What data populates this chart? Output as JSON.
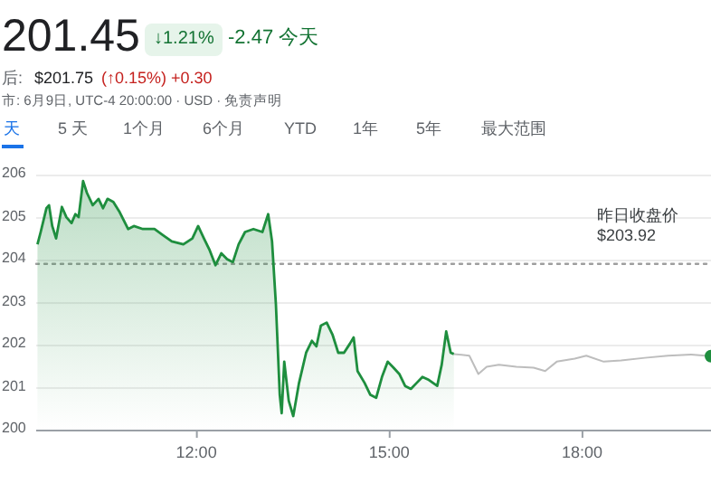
{
  "chart_data": {
    "type": "line",
    "title": "201.45",
    "annotations": [
      "↓1.21%",
      "-2.47 今天",
      "后:",
      "$201.75",
      "(↑0.15%) +0.30",
      "市: 6月9日, UTC-4 20:00:00 · USD · 免责声明",
      "天",
      "5 天",
      "1个月",
      "6个月",
      "YTD",
      "1年",
      "5年",
      "最大范围"
    ],
    "xlim": [
      9.5,
      20
    ],
    "xticks": [
      {
        "value": 12,
        "label": "12:00"
      },
      {
        "value": 15,
        "label": "15:00"
      },
      {
        "value": 18,
        "label": "18:00"
      }
    ],
    "ylim": [
      200,
      206
    ],
    "yticks": [
      200,
      201,
      202,
      203,
      204,
      205,
      206
    ],
    "grid": "y",
    "ref_lines": [
      {
        "axis": "y",
        "value": 203.92,
        "label": "昨日收盘价 $203.92",
        "color": "#9e9e9e",
        "line_style": "dotted"
      }
    ],
    "series": [
      {
        "type": "area",
        "color": "#1e8e3e",
        "x": [
          9.52,
          9.57,
          9.66,
          9.7,
          9.75,
          9.81,
          9.9,
          9.97,
          10.05,
          10.11,
          10.16,
          10.23,
          10.29,
          10.38,
          10.47,
          10.54,
          10.61,
          10.7,
          10.79,
          10.93,
          11.02,
          11.16,
          11.34,
          11.47,
          11.61,
          11.79,
          11.93,
          12.02,
          12.11,
          12.2,
          12.29,
          12.38,
          12.47,
          12.56,
          12.65,
          12.75,
          12.88,
          13.02,
          13.11,
          13.17,
          13.23,
          13.29,
          13.32,
          13.36,
          13.43,
          13.5,
          13.59,
          13.7,
          13.79,
          13.86,
          13.93,
          14.02,
          14.11,
          14.2,
          14.29,
          14.38,
          14.44,
          14.5,
          14.61,
          14.7,
          14.79,
          14.88,
          14.97,
          15.06,
          15.15,
          15.24,
          15.33,
          15.42,
          15.51,
          15.61,
          15.74,
          15.81,
          15.88,
          15.95,
          16.0
        ],
        "values": [
          204.38,
          204.67,
          205.23,
          205.3,
          204.81,
          204.52,
          205.26,
          205.02,
          204.88,
          205.09,
          205.02,
          205.87,
          205.59,
          205.3,
          205.45,
          205.23,
          205.45,
          205.38,
          205.16,
          204.74,
          204.81,
          204.74,
          204.74,
          204.6,
          204.45,
          204.38,
          204.52,
          204.81,
          204.52,
          204.24,
          203.89,
          204.17,
          204.03,
          203.96,
          204.38,
          204.67,
          204.74,
          204.67,
          205.09,
          204.45,
          202.97,
          200.84,
          200.41,
          201.62,
          200.7,
          200.34,
          201.12,
          201.83,
          202.11,
          201.98,
          202.47,
          202.54,
          202.26,
          201.83,
          201.83,
          202.04,
          202.19,
          201.4,
          201.12,
          200.84,
          200.77,
          201.26,
          201.62,
          201.48,
          201.33,
          201.05,
          200.98,
          201.12,
          201.26,
          201.19,
          201.05,
          201.55,
          202.33,
          201.83,
          201.8
        ]
      },
      {
        "type": "line",
        "color": "#bdbdbd",
        "x": [
          16.0,
          16.24,
          16.38,
          16.51,
          16.7,
          16.97,
          17.24,
          17.42,
          17.6,
          17.88,
          18.06,
          18.33,
          18.6,
          18.97,
          19.33,
          19.69,
          20.0
        ],
        "values": [
          201.8,
          201.76,
          201.33,
          201.5,
          201.55,
          201.5,
          201.48,
          201.4,
          201.62,
          201.69,
          201.76,
          201.62,
          201.65,
          201.71,
          201.76,
          201.79,
          201.75
        ]
      },
      {
        "type": "scatter",
        "color": "#1e8e3e",
        "marker": "circle",
        "x": [
          20
        ],
        "values": [
          201.75
        ]
      }
    ]
  }
}
